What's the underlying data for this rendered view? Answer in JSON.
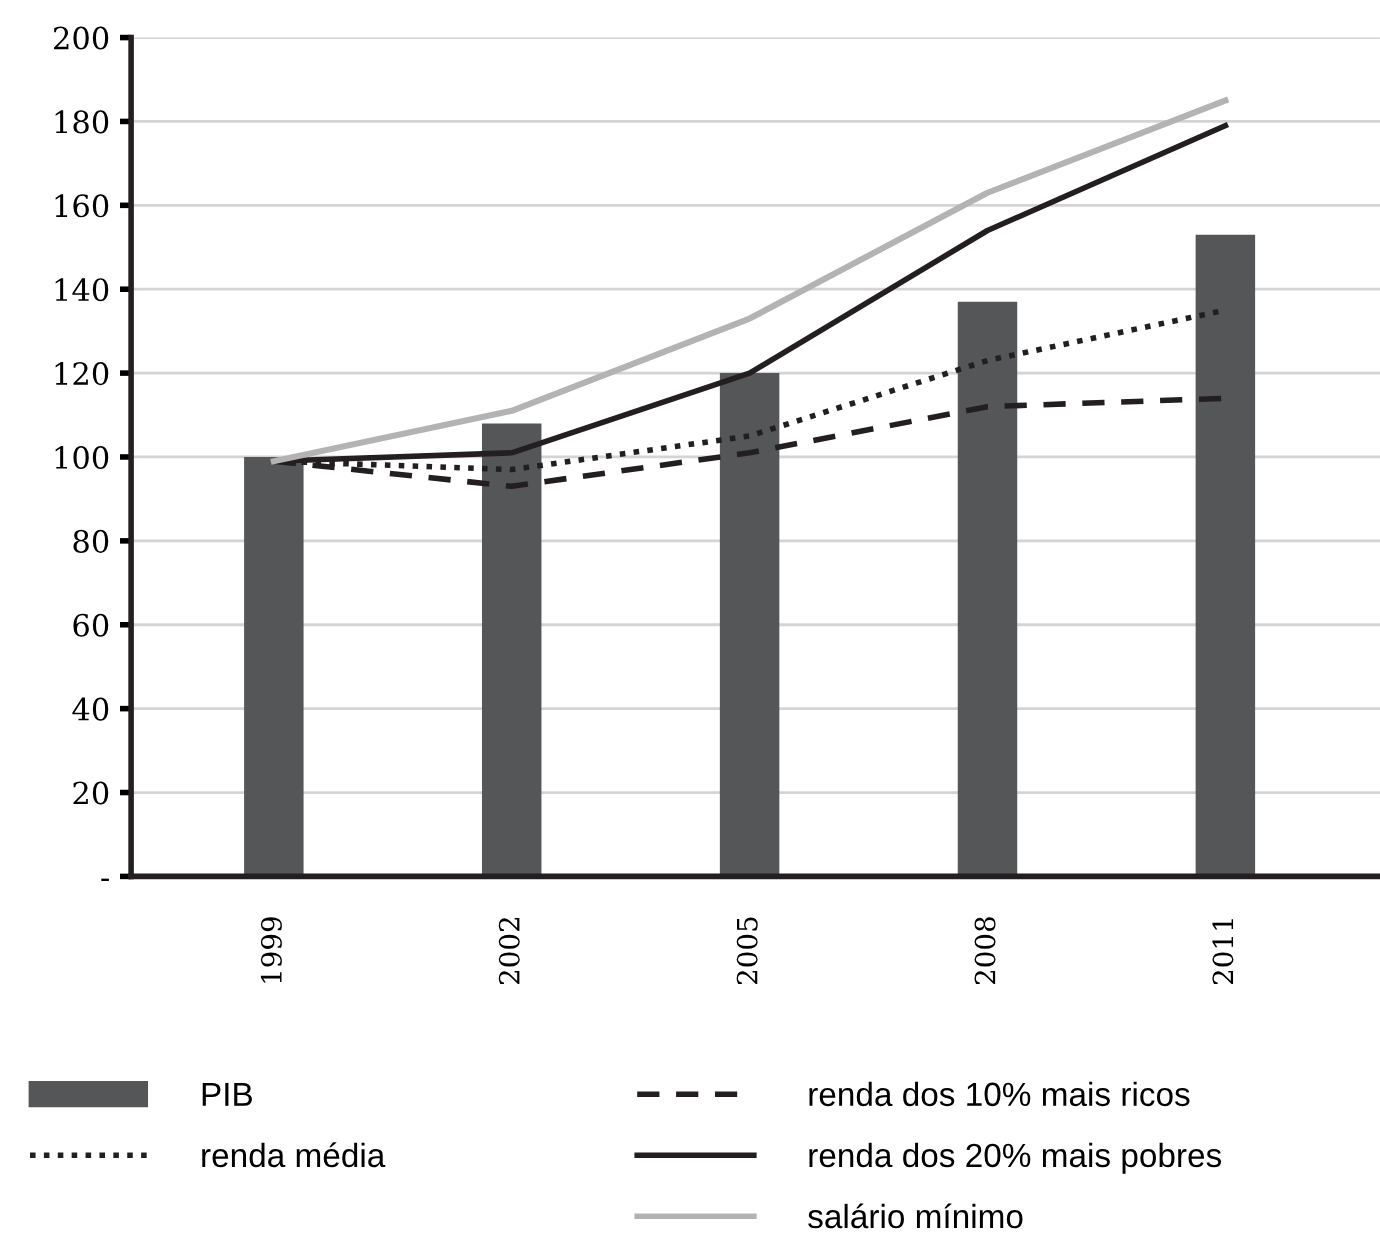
{
  "chart_data": {
    "type": "bar",
    "categories": [
      "1999",
      "2002",
      "2005",
      "2008",
      "2011"
    ],
    "series": [
      {
        "name": "PIB",
        "color": "#555658",
        "values": [
          100,
          108,
          120,
          137,
          153
        ]
      },
      {
        "name": "renda média",
        "type": "line",
        "color": "#231f20",
        "line_style": "dotted",
        "values": [
          99,
          97,
          105,
          123,
          135
        ]
      },
      {
        "name": "renda dos 10% mais ricos",
        "type": "line",
        "color": "#231f20",
        "line_style": "dashed",
        "values": [
          99,
          93,
          101,
          112,
          114
        ]
      },
      {
        "name": "renda dos 20% mais pobres",
        "type": "line",
        "color": "#231f20",
        "line_style": "solid",
        "values": [
          99,
          101,
          120,
          154,
          179
        ]
      },
      {
        "name": "salário mínimo",
        "type": "line",
        "color": "#b3b3b5",
        "line_style": "solid",
        "values": [
          99,
          111,
          133,
          163,
          185
        ]
      }
    ],
    "ylim": [
      0,
      200
    ],
    "yticks": [
      {
        "value": 0,
        "label": "-"
      },
      20,
      40,
      60,
      80,
      100,
      120,
      140,
      160,
      180,
      200
    ],
    "grid": "y",
    "legend": "bottom"
  }
}
